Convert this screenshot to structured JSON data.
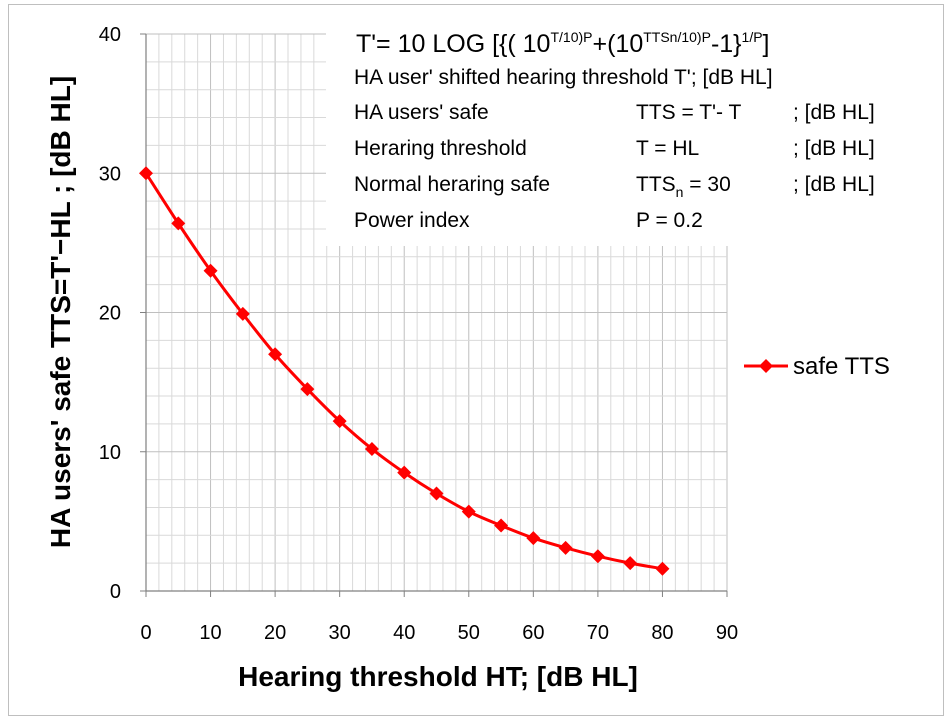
{
  "chart_data": {
    "type": "line",
    "x": [
      0,
      5,
      10,
      15,
      20,
      25,
      30,
      35,
      40,
      45,
      50,
      55,
      60,
      65,
      70,
      75,
      80
    ],
    "series": [
      {
        "name": "safe TTS",
        "color": "#ff0000",
        "marker": "diamond",
        "values": [
          30,
          26.4,
          23.0,
          19.9,
          17.0,
          14.5,
          12.2,
          10.2,
          8.5,
          7.0,
          5.7,
          4.7,
          3.8,
          3.1,
          2.5,
          2.0,
          1.6
        ]
      }
    ],
    "xlabel": "Hearing threshold HT;  [dB HL]",
    "ylabel": "HA users' safe TTS=T'−HL ;  [dB HL]",
    "xlim": [
      0,
      90
    ],
    "ylim": [
      0,
      40
    ],
    "xticks": [
      "0",
      "10",
      "20",
      "30",
      "40",
      "50",
      "60",
      "70",
      "80",
      "90"
    ],
    "yticks": [
      "0",
      "10",
      "20",
      "30",
      "40"
    ],
    "grid": true,
    "legend": "right",
    "annotations": {
      "formula_prefix": "T'= 10 LOG [{( 10",
      "formula_sup1": "T/10)",
      "formula_sup2": "P",
      "formula_mid": "+(10",
      "formula_sup3": "TTSn/10)",
      "formula_sup4": "P",
      "formula_end": "-1}",
      "formula_sup5": "1/P",
      "formula_close": "]",
      "rows": [
        {
          "label": "HA user' shifted hearing threshold T';  [dB HL]",
          "eq": "",
          "unit": ""
        },
        {
          "label": "HA users' safe",
          "eq": "TTS = T'- T",
          "unit": ";  [dB HL]"
        },
        {
          "label": "Heraring threshold",
          "eq": "T = HL",
          "unit": ";  [dB HL]"
        },
        {
          "label": "Normal heraring  safe",
          "eq": "TTSn = 30",
          "eq_main": "TTS",
          "eq_sub": "n",
          "eq_rest": " = 30",
          "unit": ";  [dB HL]"
        },
        {
          "label": "Power index",
          "eq": "P = 0.2",
          "unit": ""
        }
      ]
    }
  }
}
